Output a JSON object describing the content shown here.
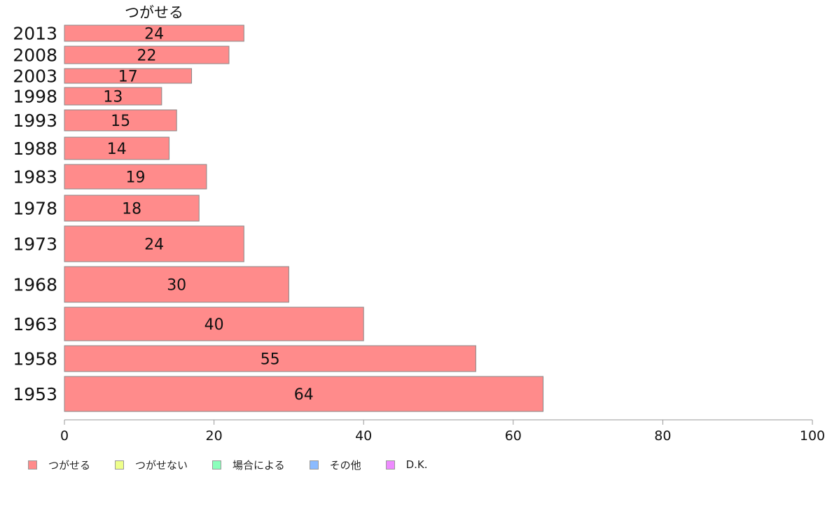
{
  "chart_data": {
    "type": "bar",
    "orientation": "horizontal",
    "column_header": "つがせる",
    "categories": [
      "2013",
      "2008",
      "2003",
      "1998",
      "1993",
      "1988",
      "1983",
      "1978",
      "1973",
      "1968",
      "1963",
      "1958",
      "1953"
    ],
    "series": [
      {
        "name": "つがせる",
        "values": [
          24,
          22,
          17,
          13,
          15,
          14,
          19,
          18,
          24,
          30,
          40,
          55,
          64
        ]
      }
    ],
    "bar_labels": [
      "24",
      "22",
      "17",
      "13",
      "15",
      "14",
      "19",
      "18",
      "24",
      "30",
      "40",
      "55",
      "64"
    ],
    "xlim": [
      0,
      100
    ],
    "xticks": [
      0,
      20,
      40,
      60,
      80,
      100
    ],
    "xticklabels": [
      "0",
      "20",
      "40",
      "60",
      "80",
      "100"
    ],
    "legend": {
      "placement": "bottom-left",
      "items": [
        {
          "label": "つがせる",
          "color": "#ff8b8b"
        },
        {
          "label": "つがせない",
          "color": "#eeff8b"
        },
        {
          "label": "場合による",
          "color": "#8bffbb"
        },
        {
          "label": "その他",
          "color": "#8bbbff"
        },
        {
          "label": "D.K.",
          "color": "#ee8bff"
        }
      ]
    },
    "colors": {
      "bar": "#ff8b8b",
      "bar_stroke": "#888888",
      "axis": "#999999"
    }
  }
}
